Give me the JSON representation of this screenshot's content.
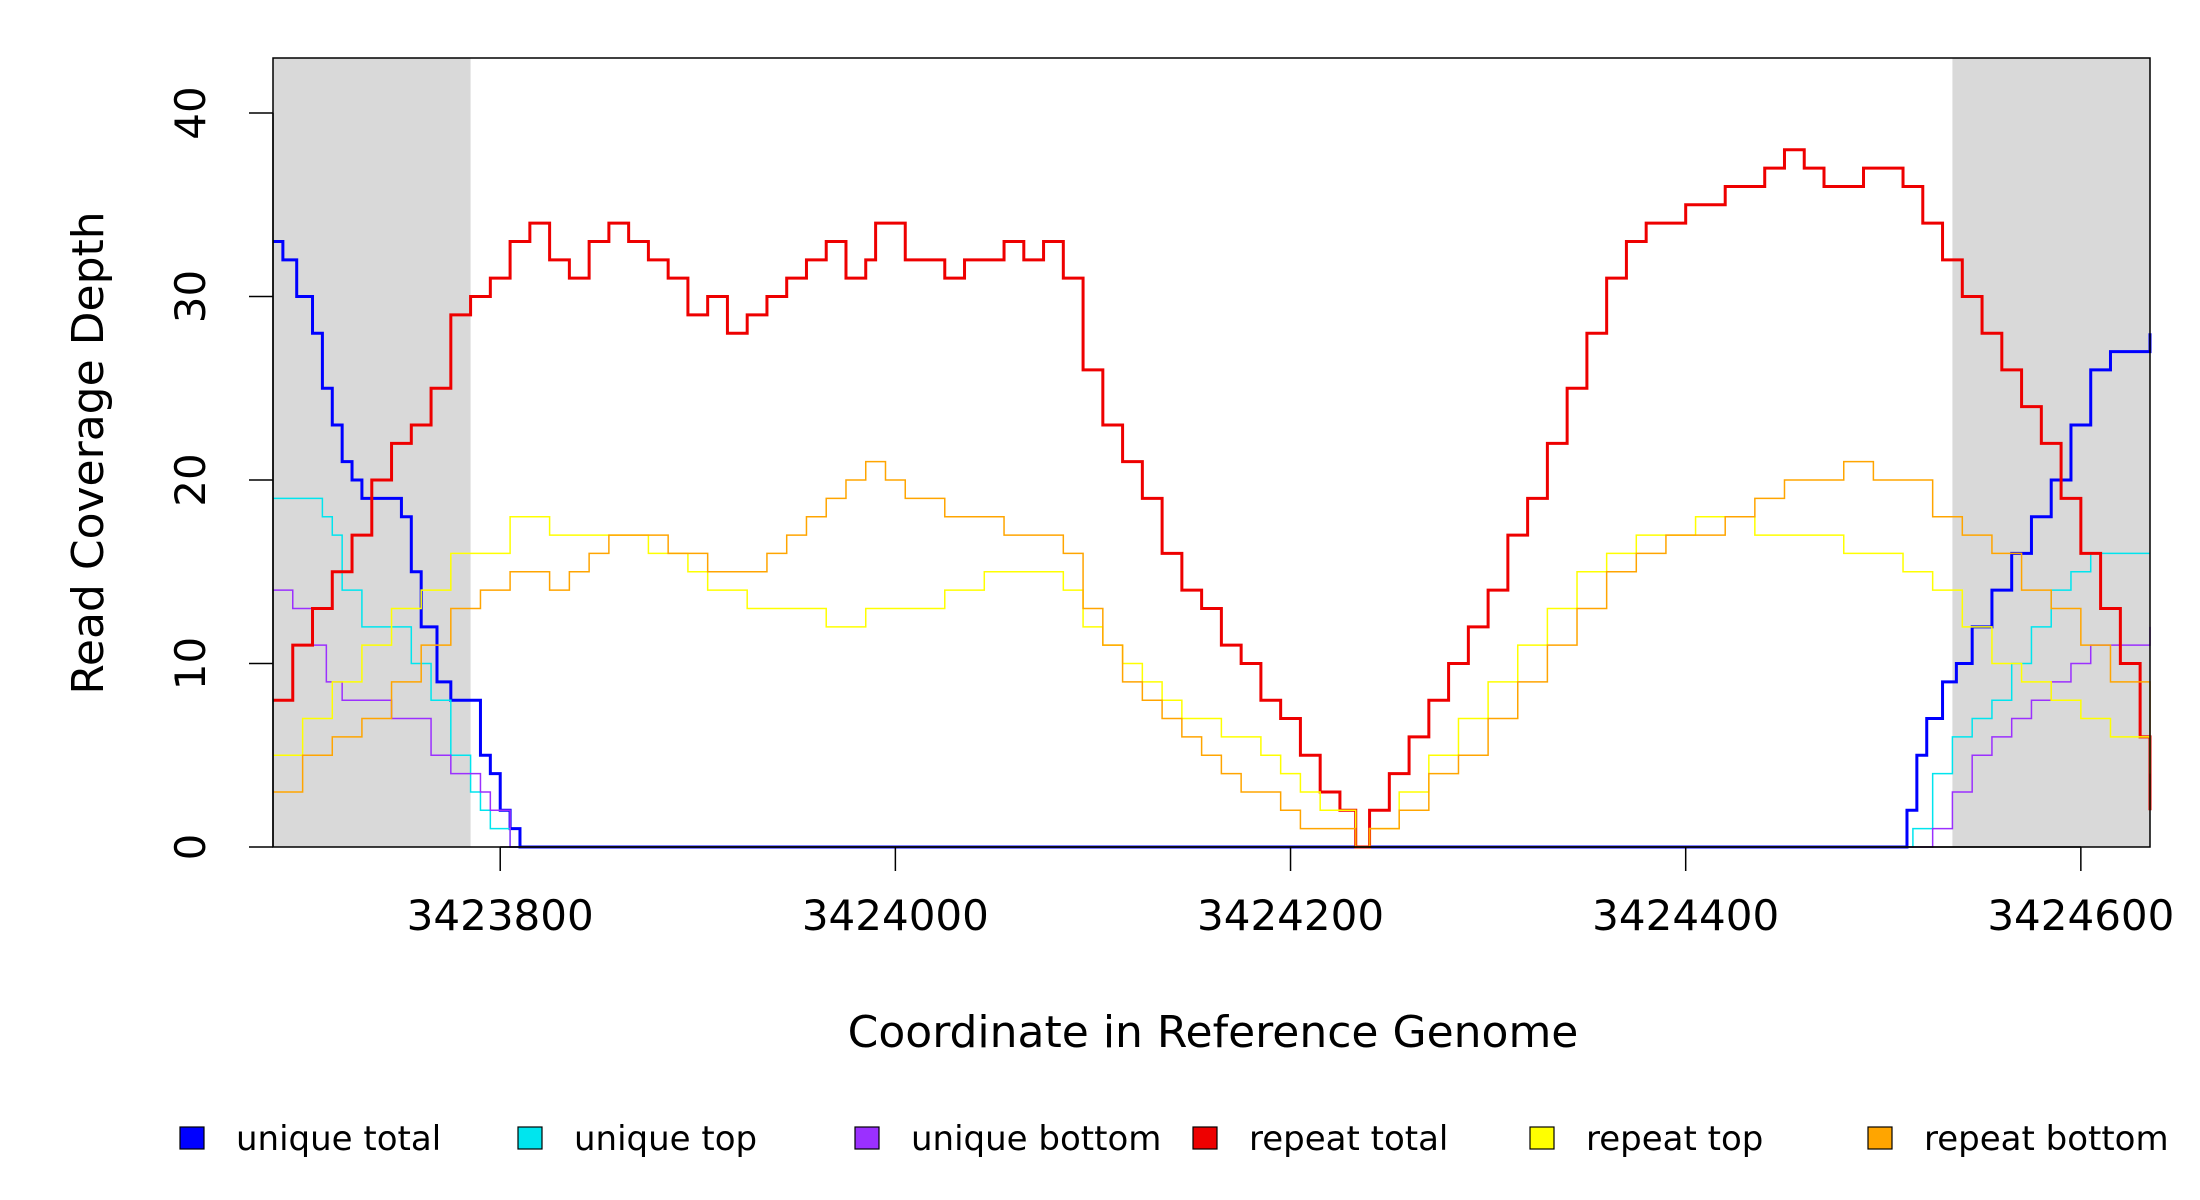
{
  "chart_data": {
    "type": "line",
    "xlabel": "Coordinate in Reference Genome",
    "ylabel": "Read Coverage Depth",
    "xlim": [
      3423685,
      3424635
    ],
    "ylim": [
      0,
      43
    ],
    "x_ticks": [
      "3423800",
      "3424000",
      "3424200",
      "3424400",
      "3424600"
    ],
    "x_tick_values": [
      3423800,
      3424000,
      3424200,
      3424400,
      3424600
    ],
    "y_ticks": [
      "0",
      "10",
      "20",
      "30",
      "40"
    ],
    "y_tick_values": [
      0,
      10,
      20,
      30,
      40
    ],
    "shaded_regions": [
      [
        3423685,
        3423785
      ],
      [
        3424535,
        3424635
      ]
    ],
    "shade_color": "#d9d9d9",
    "legend_position": "bottom",
    "series": [
      {
        "name": "unique total",
        "color": "#0000ff",
        "width": 3,
        "x": [
          3423685,
          3423690,
          3423697,
          3423705,
          3423710,
          3423715,
          3423720,
          3423725,
          3423730,
          3423740,
          3423745,
          3423750,
          3423755,
          3423760,
          3423768,
          3423775,
          3423785,
          3423790,
          3423795,
          3423800,
          3423805,
          3423810,
          3424508,
          3424512,
          3424517,
          3424522,
          3424530,
          3424537,
          3424545,
          3424555,
          3424565,
          3424575,
          3424585,
          3424595,
          3424605,
          3424615,
          3424625,
          3424635
        ],
        "y": [
          33,
          32,
          30,
          28,
          25,
          23,
          21,
          20,
          19,
          19,
          19,
          18,
          15,
          12,
          9,
          8,
          8,
          5,
          4,
          2,
          1,
          0,
          0,
          2,
          5,
          7,
          9,
          10,
          12,
          14,
          16,
          18,
          20,
          23,
          26,
          27,
          27,
          28
        ]
      },
      {
        "name": "unique top",
        "color": "#00e5ee",
        "width": 1.5,
        "x": [
          3423685,
          3423700,
          3423710,
          3423715,
          3423720,
          3423730,
          3423745,
          3423755,
          3423765,
          3423775,
          3423785,
          3423790,
          3423795,
          3423800,
          3423805,
          3424510,
          3424515,
          3424525,
          3424535,
          3424545,
          3424555,
          3424565,
          3424575,
          3424585,
          3424595,
          3424605,
          3424620,
          3424635
        ],
        "y": [
          19,
          19,
          18,
          17,
          14,
          12,
          12,
          10,
          8,
          5,
          3,
          2,
          1,
          1,
          0,
          0,
          1,
          4,
          6,
          7,
          8,
          10,
          12,
          14,
          15,
          16,
          16,
          16
        ]
      },
      {
        "name": "unique bottom",
        "color": "#9b30ff",
        "width": 1.5,
        "x": [
          3423685,
          3423695,
          3423705,
          3423712,
          3423720,
          3423730,
          3423745,
          3423755,
          3423765,
          3423775,
          3423785,
          3423790,
          3423795,
          3423805,
          3424515,
          3424525,
          3424535,
          3424545,
          3424555,
          3424565,
          3424575,
          3424585,
          3424595,
          3424605,
          3424620,
          3424635
        ],
        "y": [
          14,
          13,
          11,
          9,
          8,
          8,
          7,
          7,
          5,
          4,
          4,
          3,
          2,
          0,
          0,
          1,
          3,
          5,
          6,
          7,
          8,
          9,
          10,
          11,
          11,
          12
        ]
      },
      {
        "name": "repeat total",
        "color": "#ee0000",
        "width": 3,
        "x": [
          3423685,
          3423695,
          3423705,
          3423715,
          3423725,
          3423735,
          3423745,
          3423755,
          3423765,
          3423775,
          3423785,
          3423795,
          3423805,
          3423815,
          3423825,
          3423835,
          3423845,
          3423855,
          3423865,
          3423875,
          3423885,
          3423895,
          3423905,
          3423915,
          3423925,
          3423935,
          3423945,
          3423955,
          3423965,
          3423975,
          3423985,
          3423990,
          3423995,
          3424005,
          3424015,
          3424025,
          3424035,
          3424045,
          3424055,
          3424065,
          3424075,
          3424085,
          3424095,
          3424105,
          3424115,
          3424125,
          3424135,
          3424145,
          3424155,
          3424165,
          3424175,
          3424185,
          3424195,
          3424205,
          3424215,
          3424225,
          3424233,
          3424240,
          3424250,
          3424260,
          3424270,
          3424280,
          3424290,
          3424300,
          3424310,
          3424320,
          3424330,
          3424340,
          3424350,
          3424360,
          3424370,
          3424380,
          3424390,
          3424400,
          3424410,
          3424420,
          3424430,
          3424440,
          3424450,
          3424455,
          3424460,
          3424470,
          3424480,
          3424490,
          3424500,
          3424510,
          3424520,
          3424530,
          3424540,
          3424550,
          3424560,
          3424570,
          3424580,
          3424590,
          3424600,
          3424610,
          3424620,
          3424630,
          3424635
        ],
        "y": [
          8,
          11,
          13,
          15,
          17,
          20,
          22,
          23,
          25,
          29,
          30,
          31,
          33,
          34,
          32,
          31,
          33,
          34,
          33,
          32,
          31,
          29,
          30,
          28,
          29,
          30,
          31,
          32,
          33,
          31,
          32,
          34,
          34,
          32,
          32,
          31,
          32,
          32,
          33,
          32,
          33,
          31,
          26,
          23,
          21,
          19,
          16,
          14,
          13,
          11,
          10,
          8,
          7,
          5,
          3,
          2,
          0,
          2,
          4,
          6,
          8,
          10,
          12,
          14,
          17,
          19,
          22,
          25,
          28,
          31,
          33,
          34,
          34,
          35,
          35,
          36,
          36,
          37,
          38,
          38,
          37,
          36,
          36,
          37,
          37,
          36,
          34,
          32,
          30,
          28,
          26,
          24,
          22,
          19,
          16,
          13,
          10,
          6,
          2
        ]
      },
      {
        "name": "repeat top",
        "color": "#ffff00",
        "width": 1.5,
        "x": [
          3423685,
          3423700,
          3423715,
          3423730,
          3423745,
          3423760,
          3423775,
          3423790,
          3423805,
          3423815,
          3423825,
          3423835,
          3423845,
          3423855,
          3423865,
          3423875,
          3423885,
          3423895,
          3423905,
          3423915,
          3423925,
          3423935,
          3423945,
          3423955,
          3423965,
          3423975,
          3423985,
          3423995,
          3424005,
          3424015,
          3424025,
          3424035,
          3424045,
          3424055,
          3424065,
          3424075,
          3424085,
          3424095,
          3424105,
          3424115,
          3424125,
          3424135,
          3424145,
          3424155,
          3424165,
          3424175,
          3424185,
          3424195,
          3424205,
          3424215,
          3424225,
          3424233,
          3424240,
          3424255,
          3424270,
          3424285,
          3424300,
          3424315,
          3424330,
          3424345,
          3424360,
          3424375,
          3424390,
          3424405,
          3424420,
          3424435,
          3424450,
          3424465,
          3424480,
          3424495,
          3424510,
          3424525,
          3424540,
          3424555,
          3424570,
          3424585,
          3424600,
          3424615,
          3424635
        ],
        "y": [
          5,
          7,
          9,
          11,
          13,
          14,
          16,
          16,
          18,
          18,
          17,
          17,
          17,
          17,
          17,
          16,
          16,
          15,
          14,
          14,
          13,
          13,
          13,
          13,
          12,
          12,
          13,
          13,
          13,
          13,
          14,
          14,
          15,
          15,
          15,
          15,
          14,
          12,
          11,
          10,
          9,
          8,
          7,
          7,
          6,
          6,
          5,
          4,
          3,
          2,
          2,
          0,
          1,
          3,
          5,
          7,
          9,
          11,
          13,
          15,
          16,
          17,
          17,
          18,
          18,
          17,
          17,
          17,
          16,
          16,
          15,
          14,
          12,
          10,
          9,
          8,
          7,
          6,
          4
        ]
      },
      {
        "name": "repeat bottom",
        "color": "#ffa500",
        "width": 1.5,
        "x": [
          3423685,
          3423700,
          3423715,
          3423730,
          3423745,
          3423760,
          3423775,
          3423790,
          3423805,
          3423815,
          3423825,
          3423835,
          3423845,
          3423855,
          3423865,
          3423875,
          3423885,
          3423895,
          3423905,
          3423915,
          3423925,
          3423935,
          3423945,
          3423955,
          3423965,
          3423975,
          3423985,
          3423995,
          3424005,
          3424015,
          3424025,
          3424035,
          3424045,
          3424055,
          3424065,
          3424075,
          3424085,
          3424095,
          3424105,
          3424115,
          3424125,
          3424135,
          3424145,
          3424155,
          3424165,
          3424175,
          3424185,
          3424195,
          3424205,
          3424215,
          3424225,
          3424233,
          3424240,
          3424255,
          3424270,
          3424285,
          3424300,
          3424315,
          3424330,
          3424345,
          3424360,
          3424375,
          3424390,
          3424405,
          3424420,
          3424435,
          3424450,
          3424465,
          3424480,
          3424495,
          3424510,
          3424525,
          3424540,
          3424555,
          3424570,
          3424585,
          3424600,
          3424615,
          3424635
        ],
        "y": [
          3,
          5,
          6,
          7,
          9,
          11,
          13,
          14,
          15,
          15,
          14,
          15,
          16,
          17,
          17,
          17,
          16,
          16,
          15,
          15,
          15,
          16,
          17,
          18,
          19,
          20,
          21,
          20,
          19,
          19,
          18,
          18,
          18,
          17,
          17,
          17,
          16,
          13,
          11,
          9,
          8,
          7,
          6,
          5,
          4,
          3,
          3,
          2,
          1,
          1,
          1,
          0,
          1,
          2,
          4,
          5,
          7,
          9,
          11,
          13,
          15,
          16,
          17,
          17,
          18,
          19,
          20,
          20,
          21,
          20,
          20,
          18,
          17,
          16,
          14,
          13,
          11,
          9,
          2
        ]
      }
    ]
  }
}
